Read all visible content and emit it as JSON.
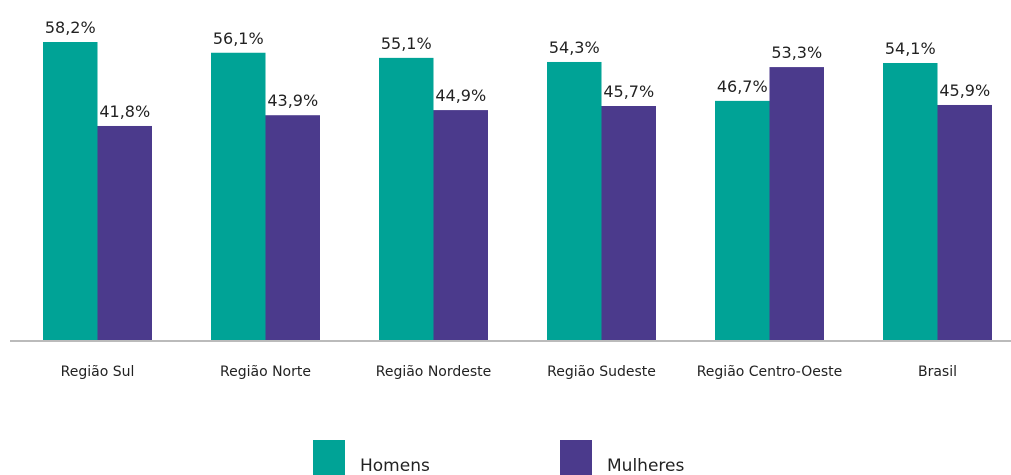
{
  "chart_data": {
    "type": "bar",
    "categories": [
      "Região Sul",
      "Região Norte",
      "Região Nordeste",
      "Região Sudeste",
      "Região Centro-Oeste",
      "Brasil"
    ],
    "series": [
      {
        "name": "Homens",
        "color": "#00a396",
        "values": [
          58.2,
          56.1,
          55.1,
          54.3,
          46.7,
          54.1
        ],
        "value_labels": [
          "58,2%",
          "56,1%",
          "55,1%",
          "54,3%",
          "46,7%",
          "54,1%"
        ]
      },
      {
        "name": "Mulheres",
        "color": "#4b3a8c",
        "values": [
          41.8,
          43.9,
          44.9,
          45.7,
          53.3,
          45.9
        ],
        "value_labels": [
          "41,8%",
          "43,9%",
          "44,9%",
          "45,7%",
          "53,3%",
          "45,9%"
        ]
      }
    ],
    "legend": "bottom"
  }
}
